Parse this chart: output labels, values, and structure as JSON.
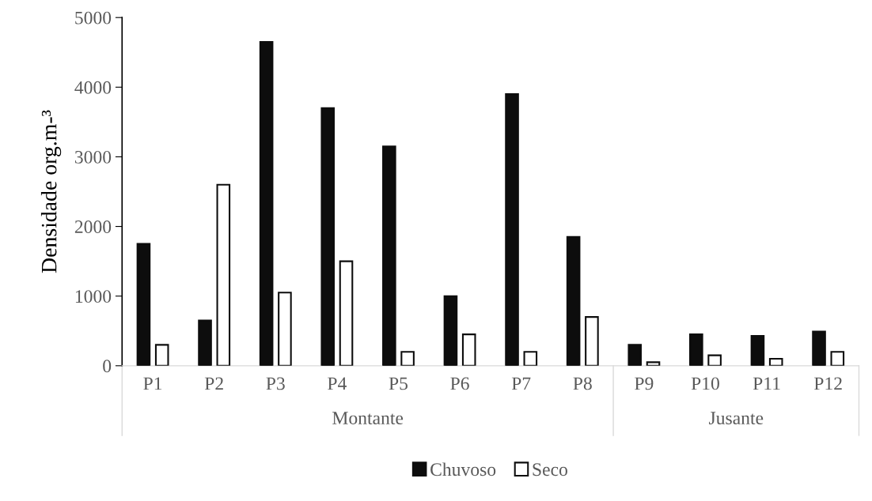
{
  "chart_data": {
    "type": "bar",
    "ylabel": "Densidade org.m-³",
    "categories": [
      "P1",
      "P2",
      "P3",
      "P4",
      "P5",
      "P6",
      "P7",
      "P8",
      "P9",
      "P10",
      "P11",
      "P12"
    ],
    "series": [
      {
        "name": "Chuvoso",
        "color": "#0d0d0d",
        "values": [
          1750,
          650,
          4650,
          3700,
          3150,
          1000,
          3900,
          1850,
          300,
          450,
          430,
          490
        ]
      },
      {
        "name": "Seco",
        "color": "#ffffff",
        "values": [
          300,
          2600,
          1050,
          1500,
          200,
          450,
          200,
          700,
          50,
          150,
          100,
          200
        ]
      }
    ],
    "ylim": [
      0,
      5000
    ],
    "yticks": [
      0,
      1000,
      2000,
      3000,
      4000,
      5000
    ],
    "annotations": [
      "Montante",
      "Jusante"
    ],
    "grid": false,
    "legend": "bottom"
  }
}
